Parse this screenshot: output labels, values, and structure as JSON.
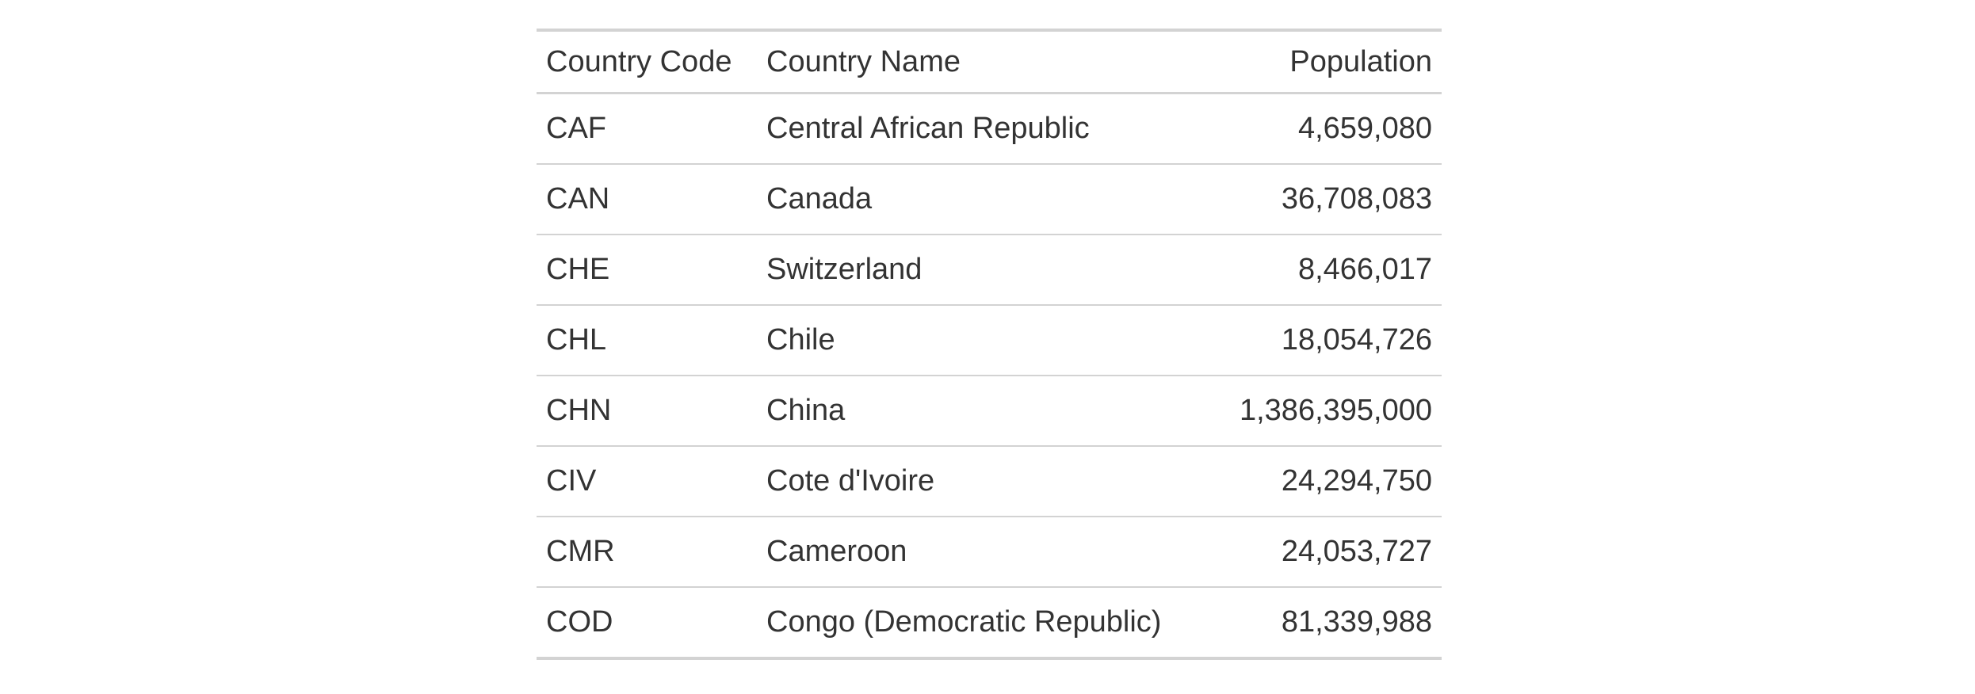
{
  "table": {
    "headers": {
      "code": "Country Code",
      "name": "Country Name",
      "population": "Population"
    },
    "rows": [
      {
        "code": "CAF",
        "name": "Central African Republic",
        "population": "4,659,080"
      },
      {
        "code": "CAN",
        "name": "Canada",
        "population": "36,708,083"
      },
      {
        "code": "CHE",
        "name": "Switzerland",
        "population": "8,466,017"
      },
      {
        "code": "CHL",
        "name": "Chile",
        "population": "18,054,726"
      },
      {
        "code": "CHN",
        "name": "China",
        "population": "1,386,395,000"
      },
      {
        "code": "CIV",
        "name": "Cote d'Ivoire",
        "population": "24,294,750"
      },
      {
        "code": "CMR",
        "name": "Cameroon",
        "population": "24,053,727"
      },
      {
        "code": "COD",
        "name": "Congo (Democratic Republic)",
        "population": "81,339,988"
      }
    ]
  }
}
